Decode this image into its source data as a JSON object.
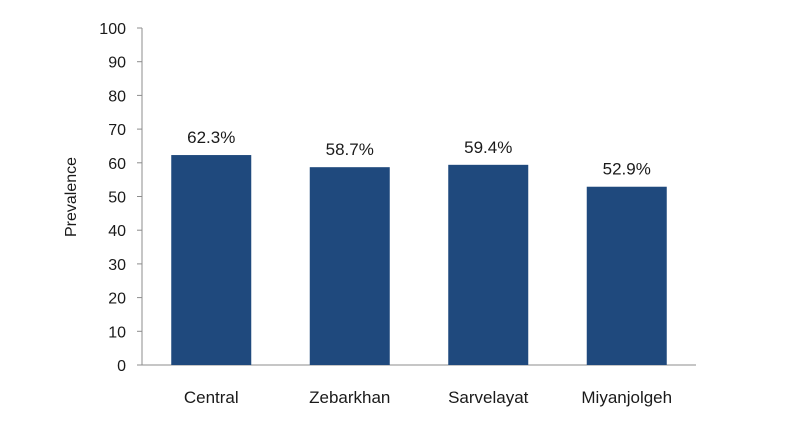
{
  "chart_data": {
    "type": "bar",
    "categories": [
      "Central",
      "Zebarkhan",
      "Sarvelayat",
      "Miyanjolgeh"
    ],
    "values": [
      62.3,
      58.7,
      59.4,
      52.9
    ],
    "data_labels": [
      "62.3%",
      "58.7%",
      "59.4%",
      "52.9%"
    ],
    "title": "",
    "xlabel": "",
    "ylabel": "Prevalence",
    "ylim": [
      0,
      100
    ],
    "yticks": [
      0,
      10,
      20,
      30,
      40,
      50,
      60,
      70,
      80,
      90,
      100
    ],
    "grid": false,
    "legend": "none",
    "bar_color": "#1f497d",
    "axis_color": "#8c8c8c"
  }
}
